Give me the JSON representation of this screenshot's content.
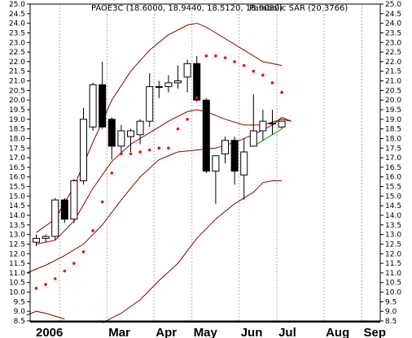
{
  "chart_data": {
    "type": "candlestick",
    "legend": {
      "symbol_text": "PAOE3C (18.6000, 18.9440, 18.5120, 18.9080)",
      "sar_text": "Parabolic SAR (20.3766)"
    },
    "y_axis": {
      "min": 8.5,
      "max": 25.0,
      "step": 0.5,
      "tick_labels": [
        "8.5",
        "9.0",
        "9.5",
        "10.0",
        "10.5",
        "11.0",
        "11.5",
        "12.0",
        "12.5",
        "13.0",
        "13.5",
        "14.0",
        "14.5",
        "15.0",
        "15.5",
        "16.0",
        "16.5",
        "17.0",
        "17.5",
        "18.0",
        "18.5",
        "19.0",
        "19.5",
        "20.0",
        "20.5",
        "21.0",
        "21.5",
        "22.0",
        "22.5",
        "23.0",
        "23.5",
        "24.0",
        "24.5",
        "25.0"
      ]
    },
    "x_axis": {
      "month_labels": [
        {
          "label": "2006",
          "week": 0
        },
        {
          "label": "Mar",
          "week": 8
        },
        {
          "label": "Apr",
          "week": 13
        },
        {
          "label": "May",
          "week": 17
        },
        {
          "label": "Jun",
          "week": 22
        },
        {
          "label": "Jul",
          "week": 26
        },
        {
          "label": "Aug",
          "week": 31
        },
        {
          "label": "Sep",
          "week": 35
        }
      ],
      "gridline_weeks": [
        3,
        8,
        13,
        17,
        22,
        26,
        31,
        35
      ]
    },
    "candles": [
      {
        "w": 0,
        "o": 12.6,
        "h": 13.0,
        "l": 12.4,
        "c": 12.8
      },
      {
        "w": 1,
        "o": 12.8,
        "h": 13.0,
        "l": 12.6,
        "c": 12.9
      },
      {
        "w": 2,
        "o": 12.9,
        "h": 14.9,
        "l": 12.7,
        "c": 14.8
      },
      {
        "w": 3,
        "o": 14.8,
        "h": 14.9,
        "l": 13.6,
        "c": 13.8
      },
      {
        "w": 4,
        "o": 13.8,
        "h": 15.9,
        "l": 13.6,
        "c": 15.8
      },
      {
        "w": 5,
        "o": 15.8,
        "h": 19.6,
        "l": 15.6,
        "c": 19.0
      },
      {
        "w": 6,
        "o": 18.6,
        "h": 20.9,
        "l": 18.4,
        "c": 20.8
      },
      {
        "w": 7,
        "o": 20.8,
        "h": 22.0,
        "l": 18.5,
        "c": 18.6
      },
      {
        "w": 8,
        "o": 19.0,
        "h": 19.1,
        "l": 16.9,
        "c": 17.6
      },
      {
        "w": 9,
        "o": 17.6,
        "h": 18.7,
        "l": 17.2,
        "c": 18.4
      },
      {
        "w": 10,
        "o": 18.1,
        "h": 18.5,
        "l": 17.3,
        "c": 18.4
      },
      {
        "w": 11,
        "o": 18.2,
        "h": 19.0,
        "l": 17.7,
        "c": 18.9
      },
      {
        "w": 12,
        "o": 18.9,
        "h": 21.4,
        "l": 18.6,
        "c": 20.7
      },
      {
        "w": 13,
        "o": 20.7,
        "h": 21.0,
        "l": 20.1,
        "c": 20.7
      },
      {
        "w": 14,
        "o": 20.7,
        "h": 21.3,
        "l": 20.4,
        "c": 20.9
      },
      {
        "w": 15,
        "o": 20.9,
        "h": 21.8,
        "l": 20.6,
        "c": 21.0
      },
      {
        "w": 16,
        "o": 21.2,
        "h": 22.1,
        "l": 20.4,
        "c": 21.9
      },
      {
        "w": 17,
        "o": 21.9,
        "h": 22.3,
        "l": 19.9,
        "c": 20.0
      },
      {
        "w": 18,
        "o": 20.0,
        "h": 20.1,
        "l": 16.2,
        "c": 16.3
      },
      {
        "w": 19,
        "o": 16.3,
        "h": 17.1,
        "l": 14.6,
        "c": 17.1
      },
      {
        "w": 20,
        "o": 17.2,
        "h": 18.1,
        "l": 16.7,
        "c": 17.9
      },
      {
        "w": 21,
        "o": 17.9,
        "h": 18.1,
        "l": 15.6,
        "c": 16.3
      },
      {
        "w": 22,
        "o": 16.1,
        "h": 18.0,
        "l": 14.8,
        "c": 17.3
      },
      {
        "w": 23,
        "o": 17.6,
        "h": 20.3,
        "l": 17.6,
        "c": 18.4
      },
      {
        "w": 24,
        "o": 18.4,
        "h": 19.5,
        "l": 17.9,
        "c": 18.9
      },
      {
        "w": 25,
        "o": 18.8,
        "h": 19.5,
        "l": 18.2,
        "c": 18.8
      },
      {
        "w": 26,
        "o": 18.6,
        "h": 18.9,
        "l": 18.5,
        "c": 18.9
      }
    ],
    "parabolic_sar": [
      {
        "w": 0,
        "v": 10.2
      },
      {
        "w": 1,
        "v": 10.4
      },
      {
        "w": 2,
        "v": 10.7
      },
      {
        "w": 3,
        "v": 11.1
      },
      {
        "w": 4,
        "v": 11.5
      },
      {
        "w": 5,
        "v": 12.1
      },
      {
        "w": 6,
        "v": 13.2
      },
      {
        "w": 7,
        "v": 14.7
      },
      {
        "w": 8,
        "v": 16.2
      },
      {
        "w": 9,
        "v": 17.2
      },
      {
        "w": 10,
        "v": 17.2
      },
      {
        "w": 11,
        "v": 17.3
      },
      {
        "w": 12,
        "v": 17.4
      },
      {
        "w": 13,
        "v": 17.5
      },
      {
        "w": 14,
        "v": 17.5
      },
      {
        "w": 15,
        "v": 18.5
      },
      {
        "w": 16,
        "v": 19.0
      },
      {
        "w": 17,
        "v": 20.1
      },
      {
        "w": 18,
        "v": 22.3
      },
      {
        "w": 19,
        "v": 22.3
      },
      {
        "w": 20,
        "v": 22.2
      },
      {
        "w": 21,
        "v": 22.0
      },
      {
        "w": 22,
        "v": 21.8
      },
      {
        "w": 23,
        "v": 21.5
      },
      {
        "w": 24,
        "v": 21.3
      },
      {
        "w": 25,
        "v": 20.9
      },
      {
        "w": 26,
        "v": 20.4
      }
    ],
    "upper_band": [
      {
        "w": 0,
        "v": 13.1
      },
      {
        "w": 2,
        "v": 13.8
      },
      {
        "w": 4,
        "v": 15.5
      },
      {
        "w": 6,
        "v": 17.8
      },
      {
        "w": 8,
        "v": 20.0
      },
      {
        "w": 10,
        "v": 21.5
      },
      {
        "w": 12,
        "v": 22.6
      },
      {
        "w": 14,
        "v": 23.4
      },
      {
        "w": 16,
        "v": 23.9
      },
      {
        "w": 17,
        "v": 24.0
      },
      {
        "w": 18,
        "v": 23.8
      },
      {
        "w": 20,
        "v": 23.2
      },
      {
        "w": 22,
        "v": 22.6
      },
      {
        "w": 24,
        "v": 22.0
      },
      {
        "w": 26,
        "v": 21.8
      }
    ],
    "middle_band": [
      {
        "w": 0,
        "v": 12.5
      },
      {
        "w": 2,
        "v": 12.7
      },
      {
        "w": 4,
        "v": 13.7
      },
      {
        "w": 6,
        "v": 15.4
      },
      {
        "w": 8,
        "v": 16.8
      },
      {
        "w": 10,
        "v": 17.7
      },
      {
        "w": 12,
        "v": 18.3
      },
      {
        "w": 14,
        "v": 18.9
      },
      {
        "w": 16,
        "v": 19.4
      },
      {
        "w": 17,
        "v": 19.5
      },
      {
        "w": 18,
        "v": 19.4
      },
      {
        "w": 20,
        "v": 19.0
      },
      {
        "w": 22,
        "v": 18.7
      },
      {
        "w": 24,
        "v": 18.7
      },
      {
        "w": 26,
        "v": 19.0
      },
      {
        "w": 27,
        "v": 18.9
      }
    ],
    "lower_band": [
      {
        "w": -1,
        "v": 11.0
      },
      {
        "w": 1,
        "v": 11.4
      },
      {
        "w": 3,
        "v": 11.9
      },
      {
        "w": 5,
        "v": 12.5
      },
      {
        "w": 7,
        "v": 13.5
      },
      {
        "w": 9,
        "v": 14.8
      },
      {
        "w": 11,
        "v": 16.0
      },
      {
        "w": 13,
        "v": 16.9
      },
      {
        "w": 15,
        "v": 17.3
      },
      {
        "w": 17,
        "v": 17.4
      },
      {
        "w": 19,
        "v": 17.5
      },
      {
        "w": 21,
        "v": 17.8
      },
      {
        "w": 23,
        "v": 18.2
      },
      {
        "w": 25,
        "v": 18.7
      },
      {
        "w": 26,
        "v": 19.1
      },
      {
        "w": 27,
        "v": 18.9
      }
    ],
    "projection_lower": [
      {
        "w": -1,
        "v": 8.8
      },
      {
        "w": 0,
        "v": 9.0
      },
      {
        "w": 1,
        "v": 8.9
      },
      {
        "w": 3,
        "v": 8.6
      }
    ],
    "projection_lower_2": [
      {
        "w": 7,
        "v": 8.4
      },
      {
        "w": 9,
        "v": 8.9
      },
      {
        "w": 11,
        "v": 9.6
      },
      {
        "w": 13,
        "v": 10.6
      },
      {
        "w": 15,
        "v": 11.5
      },
      {
        "w": 17,
        "v": 12.8
      },
      {
        "w": 19,
        "v": 13.8
      },
      {
        "w": 21,
        "v": 14.6
      },
      {
        "w": 23,
        "v": 15.2
      },
      {
        "w": 24,
        "v": 15.7
      },
      {
        "w": 25,
        "v": 15.8
      },
      {
        "w": 26,
        "v": 15.8
      }
    ],
    "trend_line": [
      {
        "w": 23,
        "v": 17.6
      },
      {
        "w": 26,
        "v": 18.5
      }
    ],
    "colors": {
      "sar": "#ff0000",
      "band": "#8b0000",
      "trend": "#00a000",
      "grid": "#b0b0b0",
      "candle": "#000000"
    }
  }
}
